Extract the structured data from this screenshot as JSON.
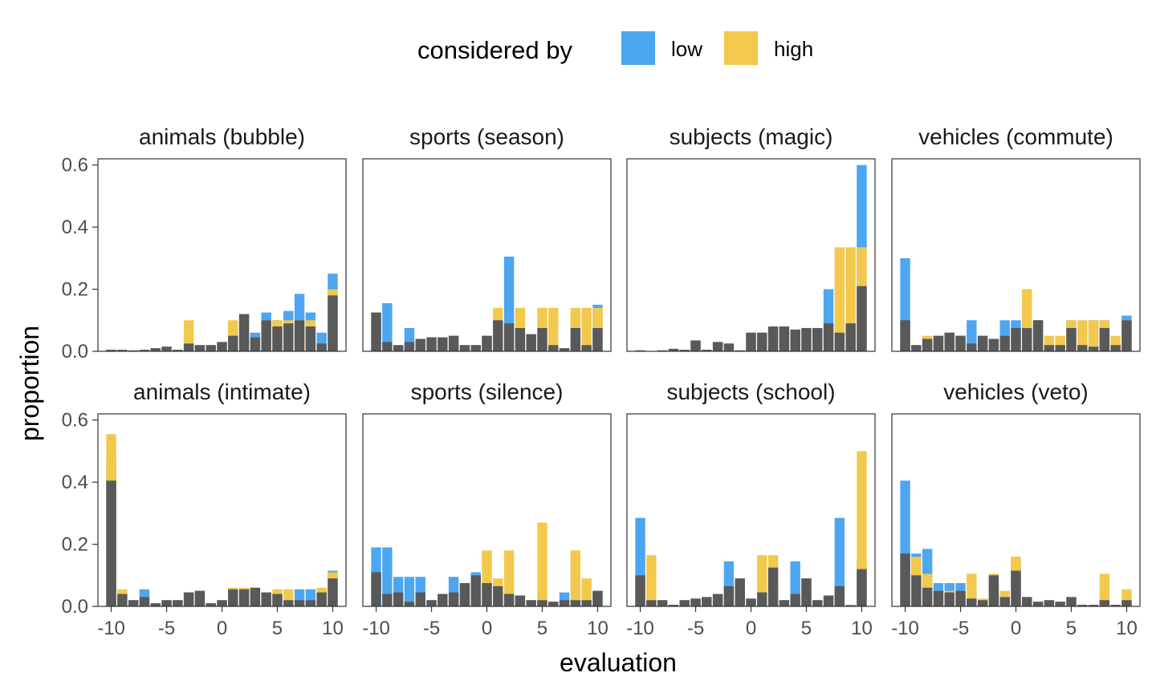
{
  "colors": {
    "low": "#4DA6F0",
    "high": "#F2C94C",
    "overlap": "#595959"
  },
  "chart_data": {
    "type": "bar",
    "xlabel": "evaluation",
    "ylabel": "proportion",
    "x": [
      -10,
      -9,
      -8,
      -7,
      -6,
      -5,
      -4,
      -3,
      -2,
      -1,
      0,
      1,
      2,
      3,
      4,
      5,
      6,
      7,
      8,
      9,
      10
    ],
    "xticks": [
      -10,
      -5,
      0,
      5,
      10
    ],
    "xtick_labels": [
      "-10",
      "-5",
      "0",
      "5",
      "10"
    ],
    "ylim": [
      0,
      0.62
    ],
    "yticks": [
      0.0,
      0.2,
      0.4,
      0.6
    ],
    "ytick_labels": [
      "0.0",
      "0.2",
      "0.4",
      "0.6"
    ],
    "legend": {
      "title": "considered by",
      "position": "top",
      "entries": [
        {
          "key": "low",
          "label": "low"
        },
        {
          "key": "high",
          "label": "high"
        }
      ]
    },
    "panels": [
      {
        "title": "animals (bubble)",
        "series": [
          {
            "name": "low",
            "values": [
              0.005,
              0.005,
              0.003,
              0.005,
              0.01,
              0.015,
              0.005,
              0.025,
              0.02,
              0.02,
              0.03,
              0.05,
              0.12,
              0.06,
              0.125,
              0.1,
              0.13,
              0.185,
              0.125,
              0.06,
              0.25
            ]
          },
          {
            "name": "high",
            "values": [
              0,
              0,
              0,
              0,
              0,
              0,
              0,
              0.1,
              0,
              0,
              0,
              0.1,
              0.1,
              0,
              0.1,
              0.1,
              0.1,
              0.1,
              0.1,
              0,
              0.2
            ]
          },
          {
            "name": "overlap",
            "values": [
              0.005,
              0.005,
              0.003,
              0.005,
              0.01,
              0.015,
              0.005,
              0.025,
              0.02,
              0.02,
              0.03,
              0.05,
              0.12,
              0.045,
              0.1,
              0.08,
              0.09,
              0.1,
              0.08,
              0.025,
              0.18
            ]
          }
        ]
      },
      {
        "title": "sports (season)",
        "series": [
          {
            "name": "low",
            "values": [
              0.125,
              0.155,
              0.02,
              0.075,
              0.04,
              0.045,
              0.045,
              0.05,
              0.02,
              0.02,
              0.05,
              0.08,
              0.305,
              0.03,
              0.055,
              0.02,
              0.02,
              0.01,
              0.02,
              0.02,
              0.15
            ]
          },
          {
            "name": "high",
            "values": [
              0,
              0,
              0,
              0,
              0,
              0,
              0,
              0,
              0,
              0,
              0,
              0.14,
              0,
              0.14,
              0,
              0.14,
              0.14,
              0,
              0.14,
              0.14,
              0.14
            ]
          },
          {
            "name": "overlap",
            "values": [
              0.125,
              0.03,
              0.02,
              0.03,
              0.04,
              0.045,
              0.045,
              0.05,
              0.02,
              0.02,
              0.05,
              0.1,
              0.09,
              0.075,
              0.055,
              0.075,
              0.02,
              0.01,
              0.075,
              0.02,
              0.075
            ]
          }
        ]
      },
      {
        "title": "subjects (magic)",
        "series": [
          {
            "name": "low",
            "values": [
              0.003,
              0,
              0.003,
              0.008,
              0.005,
              0.035,
              0.005,
              0.03,
              0.025,
              0.003,
              0.06,
              0.06,
              0.08,
              0.08,
              0.07,
              0.075,
              0.075,
              0.2,
              0.06,
              0.09,
              0.6
            ]
          },
          {
            "name": "high",
            "values": [
              0,
              0,
              0,
              0,
              0,
              0,
              0,
              0,
              0,
              0,
              0,
              0,
              0,
              0,
              0,
              0,
              0,
              0,
              0.335,
              0.335,
              0.335
            ]
          },
          {
            "name": "overlap",
            "values": [
              0.003,
              0,
              0.003,
              0.008,
              0.005,
              0.035,
              0.005,
              0.03,
              0.025,
              0.003,
              0.06,
              0.06,
              0.08,
              0.08,
              0.07,
              0.075,
              0.075,
              0.09,
              0.06,
              0.09,
              0.21
            ]
          }
        ]
      },
      {
        "title": "vehicles (commute)",
        "series": [
          {
            "name": "low",
            "values": [
              0.3,
              0.02,
              0.04,
              0.05,
              0.06,
              0.05,
              0.1,
              0.05,
              0.04,
              0.1,
              0.1,
              0.1,
              0.1,
              0.02,
              0.02,
              0.1,
              0.02,
              0.1,
              0.1,
              0.02,
              0.115
            ]
          },
          {
            "name": "high",
            "values": [
              0,
              0,
              0.05,
              0.05,
              0,
              0,
              0,
              0.05,
              0,
              0.05,
              0,
              0.2,
              0.1,
              0.05,
              0.05,
              0.1,
              0.1,
              0.1,
              0.1,
              0.05,
              0.1
            ]
          },
          {
            "name": "overlap",
            "values": [
              0.1,
              0.02,
              0.04,
              0.05,
              0.06,
              0.05,
              0.025,
              0.05,
              0.04,
              0.05,
              0.075,
              0.075,
              0.1,
              0.02,
              0.02,
              0.075,
              0.02,
              0.015,
              0.075,
              0.02,
              0.1
            ]
          }
        ]
      },
      {
        "title": "animals (intimate)",
        "series": [
          {
            "name": "low",
            "values": [
              0.47,
              0.04,
              0.02,
              0.055,
              0.01,
              0.02,
              0.02,
              0.045,
              0.05,
              0.01,
              0.02,
              0.055,
              0.055,
              0.06,
              0.045,
              0.04,
              0.02,
              0.055,
              0.055,
              0.055,
              0.115
            ]
          },
          {
            "name": "high",
            "values": [
              0.555,
              0.055,
              0,
              0,
              0,
              0,
              0,
              0,
              0,
              0,
              0,
              0.06,
              0.06,
              0,
              0,
              0.055,
              0.055,
              0,
              0,
              0.06,
              0.11
            ]
          },
          {
            "name": "overlap",
            "values": [
              0.405,
              0.04,
              0.02,
              0.03,
              0.01,
              0.02,
              0.02,
              0.045,
              0.05,
              0.01,
              0.02,
              0.055,
              0.055,
              0.06,
              0.045,
              0.04,
              0.02,
              0.02,
              0.02,
              0.045,
              0.09
            ]
          }
        ]
      },
      {
        "title": "sports (silence)",
        "series": [
          {
            "name": "low",
            "values": [
              0.19,
              0.19,
              0.095,
              0.095,
              0.095,
              0.02,
              0.04,
              0.095,
              0.075,
              0.11,
              0.075,
              0.065,
              0.04,
              0.035,
              0.02,
              0.02,
              0.015,
              0.045,
              0.02,
              0.02,
              0.05
            ]
          },
          {
            "name": "high",
            "values": [
              0,
              0,
              0,
              0,
              0,
              0,
              0,
              0,
              0,
              0,
              0.18,
              0.09,
              0.18,
              0,
              0,
              0.27,
              0,
              0,
              0.18,
              0.09,
              0
            ]
          },
          {
            "name": "overlap",
            "values": [
              0.11,
              0.04,
              0.045,
              0.015,
              0.045,
              0.02,
              0.04,
              0.045,
              0.075,
              0.1,
              0.075,
              0.065,
              0.04,
              0.035,
              0.02,
              0.02,
              0.015,
              0.02,
              0.02,
              0.02,
              0.05
            ]
          }
        ]
      },
      {
        "title": "subjects (school)",
        "series": [
          {
            "name": "low",
            "values": [
              0.285,
              0.02,
              0.02,
              0.005,
              0.02,
              0.025,
              0.03,
              0.04,
              0.145,
              0.09,
              0.025,
              0.045,
              0.08,
              0.02,
              0.145,
              0.09,
              0.02,
              0.035,
              0.285,
              0.005,
              0.145
            ]
          },
          {
            "name": "high",
            "values": [
              0,
              0.165,
              0,
              0,
              0,
              0,
              0,
              0,
              0,
              0,
              0,
              0.165,
              0.165,
              0,
              0,
              0,
              0,
              0,
              0,
              0,
              0.5
            ]
          },
          {
            "name": "overlap",
            "values": [
              0.1,
              0.02,
              0.02,
              0.005,
              0.02,
              0.025,
              0.03,
              0.04,
              0.065,
              0.09,
              0.025,
              0.045,
              0.125,
              0.02,
              0.04,
              0.09,
              0.02,
              0.035,
              0.065,
              0.003,
              0.12
            ]
          }
        ]
      },
      {
        "title": "vehicles (veto)",
        "series": [
          {
            "name": "low",
            "values": [
              0.405,
              0.17,
              0.185,
              0.075,
              0.075,
              0.075,
              0.025,
              0.02,
              0.075,
              0.03,
              0.145,
              0.03,
              0.015,
              0.02,
              0.015,
              0.03,
              0.005,
              0.005,
              0.02,
              0.005,
              0.02
            ]
          },
          {
            "name": "high",
            "values": [
              0.105,
              0.16,
              0.105,
              0.05,
              0.05,
              0.05,
              0.105,
              0.025,
              0.105,
              0.05,
              0.16,
              0,
              0,
              0,
              0,
              0,
              0,
              0,
              0.105,
              0,
              0.055
            ]
          },
          {
            "name": "overlap",
            "values": [
              0.17,
              0.1,
              0.06,
              0.05,
              0.045,
              0.05,
              0.025,
              0.02,
              0.1,
              0.03,
              0.115,
              0.03,
              0.015,
              0.02,
              0.015,
              0.03,
              0.005,
              0.005,
              0.02,
              0.005,
              0.02
            ]
          }
        ]
      }
    ]
  }
}
